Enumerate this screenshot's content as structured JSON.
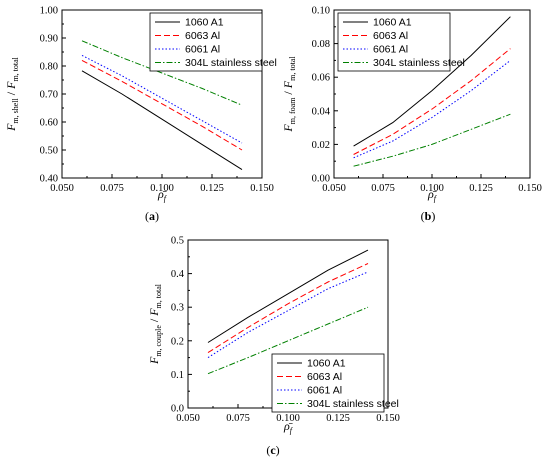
{
  "chart_data": [
    {
      "type": "line",
      "panel_label": "(a)",
      "ylabel": "F m, shell / F m, total",
      "xlabel": "ρ̄ f",
      "xlim": [
        0.05,
        0.15
      ],
      "ylim": [
        0.4,
        1.0
      ],
      "xticks": [
        "0.050",
        "0.075",
        "0.100",
        "0.125",
        "0.150"
      ],
      "yticks": [
        "0.40",
        "0.50",
        "0.60",
        "0.70",
        "0.80",
        "0.90",
        "1.00"
      ],
      "legend_position": "top-right",
      "x": [
        0.06,
        0.08,
        0.1,
        0.12,
        0.14
      ],
      "series": [
        {
          "name": "1060 A1",
          "color": "#000000",
          "dash": "",
          "values": [
            0.783,
            0.7,
            0.61,
            0.52,
            0.43
          ]
        },
        {
          "name": "6063 Al",
          "color": "#ff0000",
          "dash": "6,3",
          "values": [
            0.82,
            0.745,
            0.665,
            0.585,
            0.5
          ]
        },
        {
          "name": "6061 Al",
          "color": "#0000ff",
          "dash": "1.5,2",
          "values": [
            0.838,
            0.765,
            0.685,
            0.605,
            0.525
          ]
        },
        {
          "name": "304L stainless steel",
          "color": "#008000",
          "dash": "6,2,1.5,2",
          "values": [
            0.89,
            0.83,
            0.775,
            0.72,
            0.66
          ]
        }
      ]
    },
    {
      "type": "line",
      "panel_label": "(b)",
      "ylabel": "F m, foam / F m, total",
      "xlabel": "ρ̄ f",
      "xlim": [
        0.05,
        0.15
      ],
      "ylim": [
        0.0,
        0.1
      ],
      "xticks": [
        "0.050",
        "0.075",
        "0.100",
        "0.125",
        "0.150"
      ],
      "yticks": [
        "0.00",
        "0.02",
        "0.04",
        "0.06",
        "0.08",
        "0.10"
      ],
      "legend_position": "top-left",
      "x": [
        0.06,
        0.08,
        0.1,
        0.12,
        0.14
      ],
      "series": [
        {
          "name": "1060 A1",
          "color": "#000000",
          "dash": "",
          "values": [
            0.019,
            0.033,
            0.052,
            0.073,
            0.096
          ]
        },
        {
          "name": "6063 Al",
          "color": "#ff0000",
          "dash": "6,3",
          "values": [
            0.014,
            0.026,
            0.041,
            0.058,
            0.077
          ]
        },
        {
          "name": "6061 Al",
          "color": "#0000ff",
          "dash": "1.5,2",
          "values": [
            0.012,
            0.022,
            0.036,
            0.052,
            0.07
          ]
        },
        {
          "name": "304L stainless steel",
          "color": "#008000",
          "dash": "6,2,1.5,2",
          "values": [
            0.007,
            0.013,
            0.02,
            0.029,
            0.038
          ]
        }
      ]
    },
    {
      "type": "line",
      "panel_label": "(c)",
      "ylabel": "F m, couple / F m, total",
      "xlabel": "ρ̄ f",
      "xlim": [
        0.05,
        0.15
      ],
      "ylim": [
        0.0,
        0.5
      ],
      "xticks": [
        "0.050",
        "0.075",
        "0.100",
        "0.125",
        "0.150"
      ],
      "yticks": [
        "0.0",
        "0.1",
        "0.2",
        "0.3",
        "0.4",
        "0.5"
      ],
      "legend_position": "bottom-right",
      "x": [
        0.06,
        0.08,
        0.1,
        0.12,
        0.14
      ],
      "series": [
        {
          "name": "1060 A1",
          "color": "#000000",
          "dash": "",
          "values": [
            0.195,
            0.27,
            0.34,
            0.41,
            0.47
          ]
        },
        {
          "name": "6063 Al",
          "color": "#ff0000",
          "dash": "6,3",
          "values": [
            0.165,
            0.24,
            0.31,
            0.375,
            0.43
          ]
        },
        {
          "name": "6061 Al",
          "color": "#0000ff",
          "dash": "1.5,2",
          "values": [
            0.15,
            0.225,
            0.29,
            0.355,
            0.405
          ]
        },
        {
          "name": "304L stainless steel",
          "color": "#008000",
          "dash": "6,2,1.5,2",
          "values": [
            0.102,
            0.15,
            0.2,
            0.25,
            0.3
          ]
        }
      ]
    }
  ]
}
